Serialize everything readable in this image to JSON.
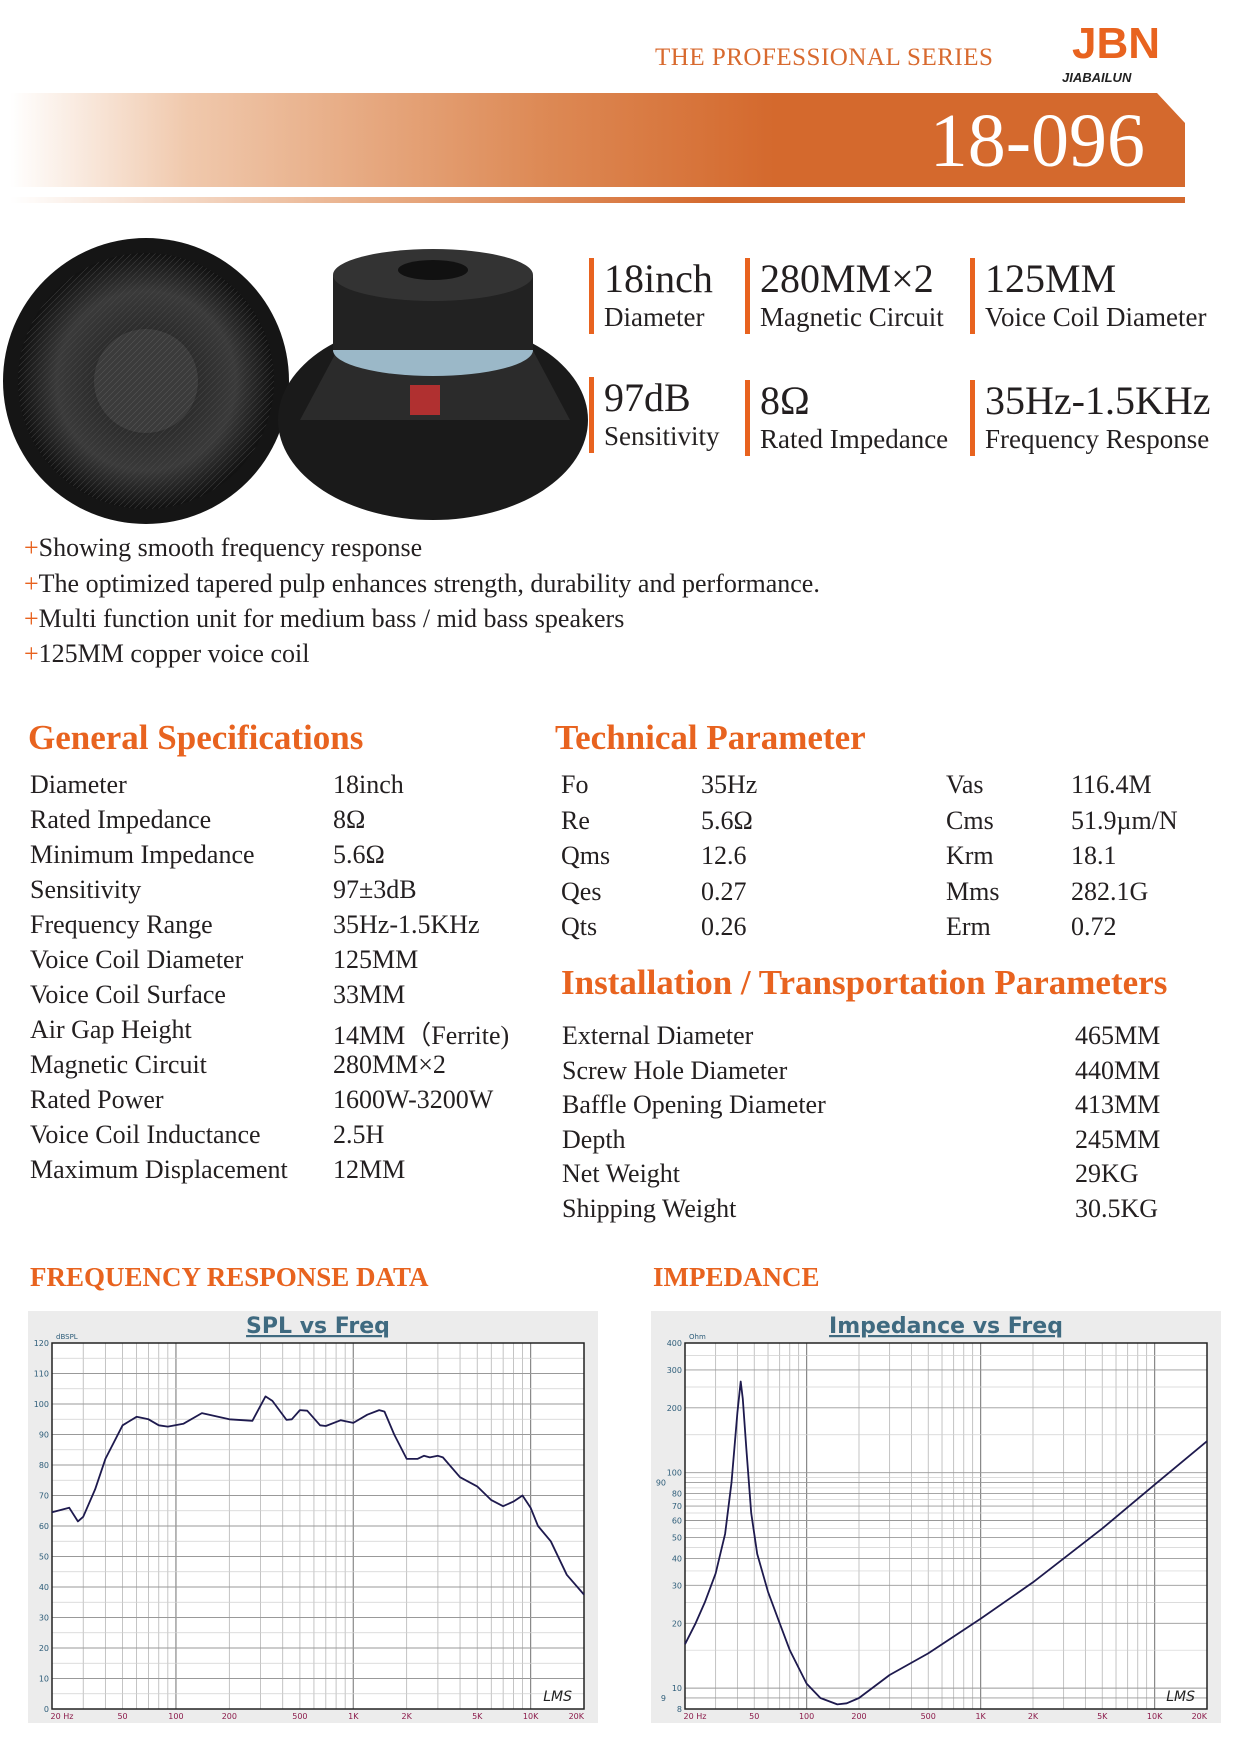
{
  "header": {
    "series": "THE PROFESSIONAL SERIES",
    "logo_text": "JBN",
    "logo_sub": "JIABAILUN",
    "model": "18-096"
  },
  "colors": {
    "accent": "#e8631f",
    "banner": "#d4692d",
    "chart_title": "#3f6a80",
    "curve": "#1e1a4e",
    "tick_x": "#8b1a4a",
    "tick_y": "#2f5e7a"
  },
  "key_specs": [
    {
      "value": "18inch",
      "label": "Diameter"
    },
    {
      "value": "280MM×2",
      "label": "Magnetic Circuit"
    },
    {
      "value": "125MM",
      "label": "Voice Coil Diameter"
    },
    {
      "value": "97dB",
      "label": "Sensitivity"
    },
    {
      "value": "8Ω",
      "label": "Rated Impedance"
    },
    {
      "value": "35Hz-1.5KHz",
      "label": "Frequency Response"
    }
  ],
  "features": [
    "Showing smooth frequency response",
    "The optimized tapered pulp enhances strength, durability and performance.",
    "Multi function unit for medium bass / mid bass speakers",
    "125MM copper voice coil"
  ],
  "general": {
    "title": "General Specifications",
    "rows": [
      [
        "Diameter",
        "18inch"
      ],
      [
        "Rated Impedance",
        "8Ω"
      ],
      [
        "Minimum Impedance",
        "5.6Ω"
      ],
      [
        "Sensitivity",
        "97±3dB"
      ],
      [
        "Frequency Range",
        "35Hz-1.5KHz"
      ],
      [
        "Voice Coil Diameter",
        "125MM"
      ],
      [
        "Voice Coil Surface",
        "33MM"
      ],
      [
        "Air Gap Height",
        "14MM（Ferrite)"
      ],
      [
        "Magnetic Circuit",
        "280MM×2"
      ],
      [
        "Rated Power",
        "1600W-3200W"
      ],
      [
        "Voice Coil Inductance",
        "2.5H"
      ],
      [
        "Maximum Displacement",
        "12MM"
      ]
    ]
  },
  "technical": {
    "title": "Technical Parameter",
    "rows": [
      [
        "Fo",
        "35Hz",
        "Vas",
        "116.4M"
      ],
      [
        "Re",
        "5.6Ω",
        "Cms",
        "51.9µm/N"
      ],
      [
        "Qms",
        "12.6",
        "Krm",
        "18.1"
      ],
      [
        "Qes",
        "0.27",
        "Mms",
        "282.1G"
      ],
      [
        "Qts",
        "0.26",
        "Erm",
        "0.72"
      ]
    ]
  },
  "installation": {
    "title": "Installation / Transportation Parameters",
    "rows": [
      [
        "External Diameter",
        "465MM"
      ],
      [
        "Screw Hole Diameter",
        "440MM"
      ],
      [
        "Baffle Opening Diameter",
        "413MM"
      ],
      [
        "Depth",
        "245MM"
      ],
      [
        "Net Weight",
        "29KG"
      ],
      [
        "Shipping Weight",
        "30.5KG"
      ]
    ]
  },
  "sections": {
    "freq": "FREQUENCY RESPONSE DATA",
    "imp": "IMPEDANCE"
  },
  "chart_data": [
    {
      "type": "line",
      "title": "SPL vs Freq",
      "ylabel": "dBSPL",
      "xscale": "log",
      "yscale": "linear",
      "xlim": [
        20,
        20000
      ],
      "ylim": [
        0,
        120
      ],
      "grid": true,
      "watermark": "LMS",
      "xticks": [
        [
          20,
          "20 Hz"
        ],
        [
          50,
          "50"
        ],
        [
          100,
          "100"
        ],
        [
          200,
          "200"
        ],
        [
          500,
          "500"
        ],
        [
          1000,
          "1K"
        ],
        [
          2000,
          "2K"
        ],
        [
          5000,
          "5K"
        ],
        [
          10000,
          "10K"
        ],
        [
          20000,
          "20K"
        ]
      ],
      "yticks": [
        0,
        10,
        20,
        30,
        40,
        50,
        60,
        70,
        80,
        90,
        100,
        110,
        120
      ],
      "x": [
        20,
        25,
        28,
        30,
        35,
        40,
        50,
        60,
        70,
        80,
        90,
        110,
        140,
        200,
        270,
        320,
        350,
        420,
        450,
        500,
        550,
        650,
        700,
        850,
        1000,
        1200,
        1400,
        1500,
        1700,
        2000,
        2300,
        2500,
        2700,
        3000,
        3200,
        4000,
        5000,
        6000,
        7000,
        8000,
        9000,
        10000,
        11000,
        13000,
        16000,
        20000
      ],
      "y": [
        64.5,
        66,
        61.5,
        63,
        72,
        82,
        93,
        95.8,
        95,
        93,
        92.6,
        93.5,
        97,
        95,
        94.5,
        102.5,
        101,
        94.8,
        95,
        98,
        97.8,
        93,
        92.8,
        94.7,
        93.8,
        96.5,
        98,
        97.5,
        90,
        82,
        82,
        83,
        82.5,
        83,
        82.5,
        76,
        73,
        68.5,
        66.5,
        68,
        70,
        66,
        60,
        55,
        44,
        37.5
      ]
    },
    {
      "type": "line",
      "title": "Impedance vs Freq",
      "ylabel": "Ohm",
      "xscale": "log",
      "yscale": "log",
      "xlim": [
        20,
        20000
      ],
      "ylim": [
        8,
        400
      ],
      "grid": true,
      "watermark": "LMS",
      "xticks": [
        [
          20,
          "20 Hz"
        ],
        [
          50,
          "50"
        ],
        [
          100,
          "100"
        ],
        [
          200,
          "200"
        ],
        [
          500,
          "500"
        ],
        [
          1000,
          "1K"
        ],
        [
          2000,
          "2K"
        ],
        [
          5000,
          "5K"
        ],
        [
          10000,
          "10K"
        ],
        [
          20000,
          "20K"
        ]
      ],
      "yticks": [
        8,
        9,
        10,
        20,
        30,
        40,
        50,
        60,
        70,
        80,
        90,
        100,
        200,
        300,
        400
      ],
      "x": [
        20,
        23,
        26,
        30,
        34,
        37,
        40,
        41.8,
        43,
        45,
        48,
        52,
        60,
        70,
        80,
        100,
        120,
        150,
        170,
        200,
        300,
        500,
        1000,
        2000,
        5000,
        10000,
        20000
      ],
      "y": [
        16,
        20,
        25,
        34,
        52,
        90,
        190,
        265,
        220,
        130,
        65,
        42,
        28,
        20,
        15,
        10.5,
        9,
        8.4,
        8.5,
        9,
        11.5,
        14.5,
        21,
        31,
        55,
        88,
        140
      ]
    }
  ]
}
